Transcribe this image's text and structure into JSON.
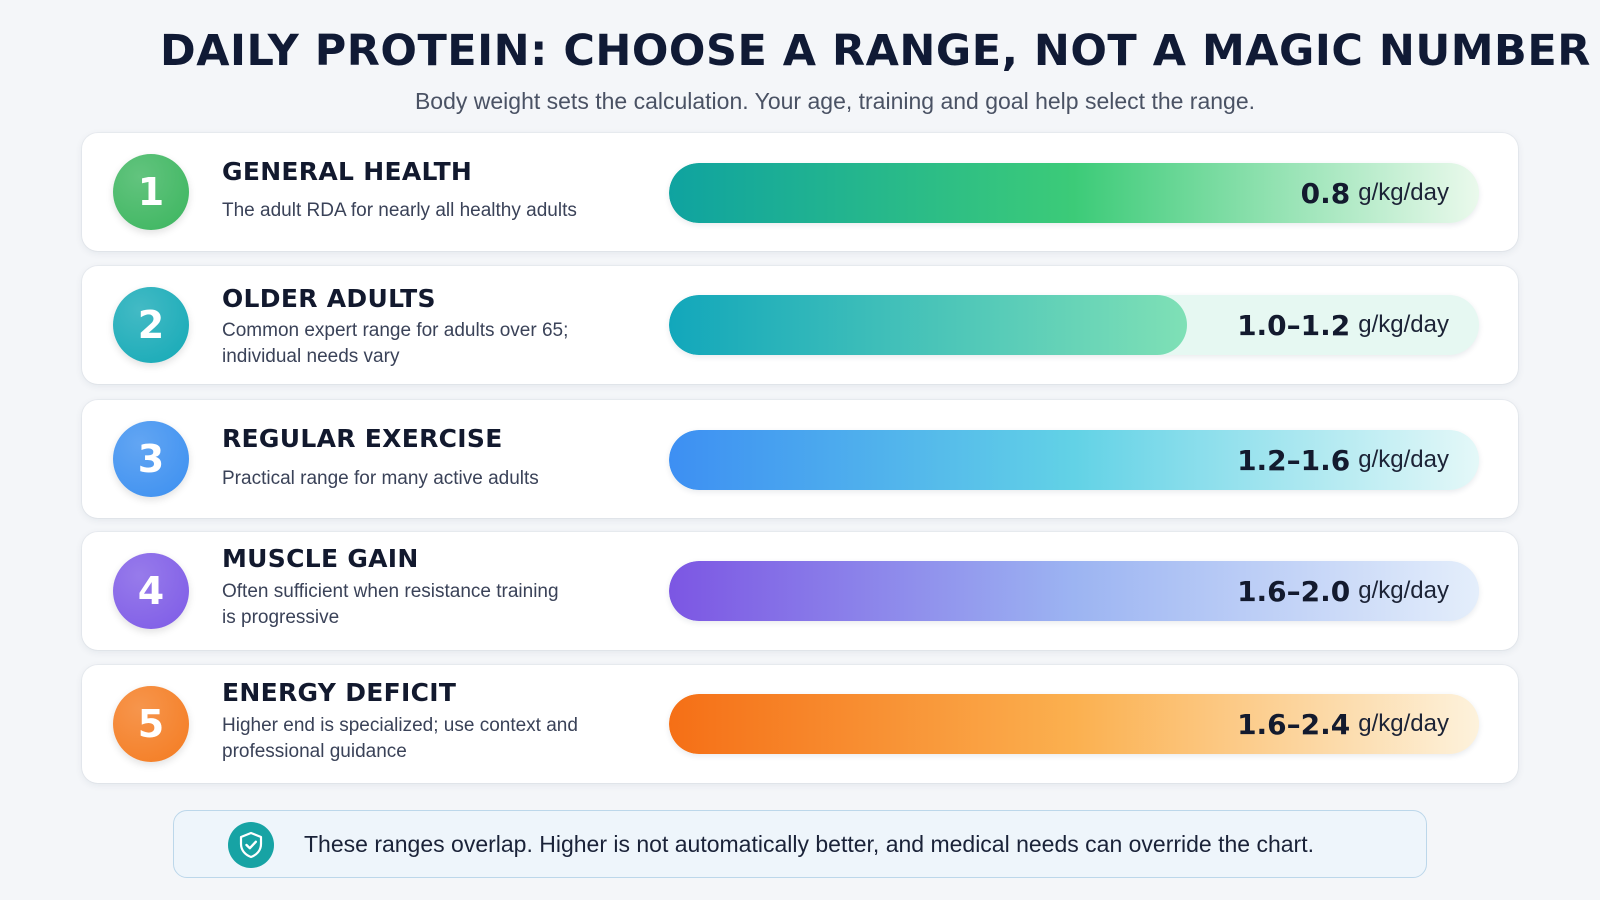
{
  "header": {
    "title": "DAILY PROTEIN: CHOOSE A RANGE, NOT A MAGIC NUMBER",
    "subtitle": "Body weight sets the calculation. Your age, training and goal help select the range."
  },
  "tiers": [
    {
      "number": "1",
      "title": "GENERAL HEALTH",
      "description": "The adult RDA for nearly all healthy adults",
      "value": "0.8",
      "unit": "g/kg/day",
      "fill_fraction": 1.0,
      "circle_color": "#3bb55e",
      "bar_gradient": [
        "#0fa3a0",
        "#3ccb78",
        "#eaf9ec"
      ],
      "track_color": "#eaf9ec"
    },
    {
      "number": "2",
      "title": "OLDER ADULTS",
      "description": "Common expert range for adults over 65; individual needs vary",
      "value": "1.0–1.2",
      "unit": "g/kg/day",
      "fill_fraction": 0.64,
      "circle_color": "#14a9b6",
      "bar_gradient": [
        "#12a7bb",
        "#7fe0b6"
      ],
      "track_color": "#e6f8f2"
    },
    {
      "number": "3",
      "title": "REGULAR EXERCISE",
      "description": "Practical range for many active adults",
      "value": "1.2–1.6",
      "unit": "g/kg/day",
      "fill_fraction": 1.0,
      "circle_color": "#3b8ff0",
      "bar_gradient": [
        "#3d8ff3",
        "#62d2e6",
        "#e4f8f8"
      ],
      "track_color": "#e4f8f8"
    },
    {
      "number": "4",
      "title": "MUSCLE GAIN",
      "description": "Often sufficient when resistance training is progressive",
      "value": "1.6–2.0",
      "unit": "g/kg/day",
      "fill_fraction": 1.0,
      "circle_color": "#7d5ae6",
      "bar_gradient": [
        "#7c56e3",
        "#9cb4f2",
        "#e4eefb"
      ],
      "track_color": "#e4eefb"
    },
    {
      "number": "5",
      "title": "ENERGY DEFICIT",
      "description": "Higher end is specialized; use context and professional guidance",
      "value": "1.6–2.4",
      "unit": "g/kg/day",
      "fill_fraction": 1.0,
      "circle_color": "#f47b20",
      "bar_gradient": [
        "#f56f16",
        "#fbb04f",
        "#fdf2dc"
      ],
      "track_color": "#fdf2dc"
    }
  ],
  "note": {
    "icon": "shield-check-icon",
    "text": "These ranges overlap. Higher is not automatically better, and medical needs can override the chart."
  }
}
